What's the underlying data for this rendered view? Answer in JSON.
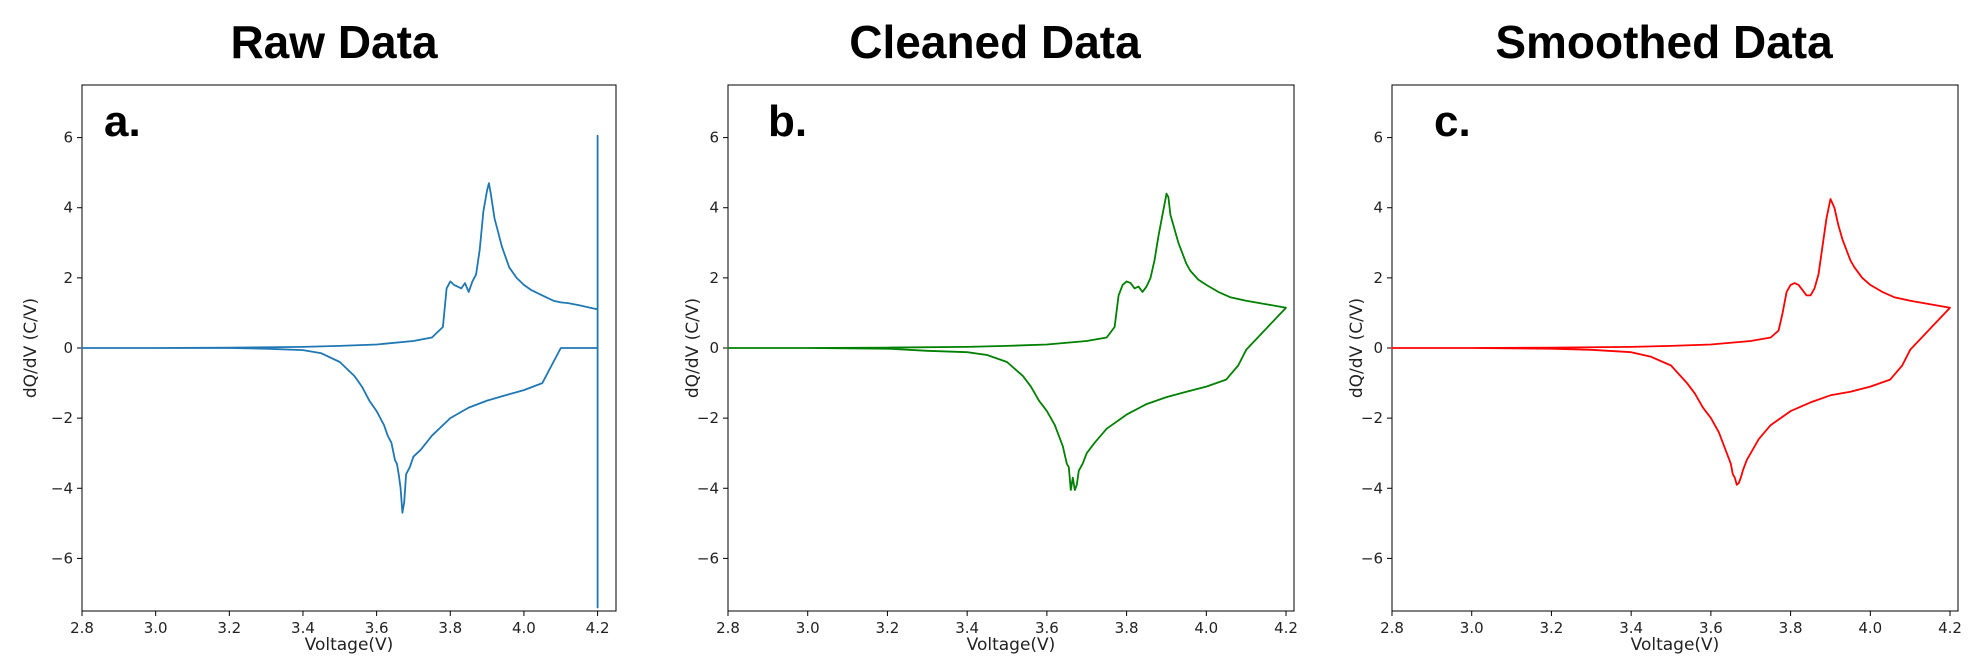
{
  "chart_data": [
    {
      "type": "line",
      "title": "Raw Data",
      "panel_label": "a.",
      "xlabel": "Voltage(V)",
      "ylabel": "dQ/dV (C/V)",
      "xlim": [
        2.8,
        4.25
      ],
      "ylim": [
        -7.5,
        7.5
      ],
      "xticks": [
        2.8,
        3.0,
        3.2,
        3.4,
        3.6,
        3.8,
        4.0,
        4.2
      ],
      "xtick_labels": [
        "2.8",
        "3.0",
        "3.2",
        "3.4",
        "3.6",
        "3.8",
        "4.0",
        "4.2"
      ],
      "yticks": [
        -6,
        -4,
        -2,
        0,
        2,
        4,
        6
      ],
      "ytick_labels": [
        "−6",
        "−4",
        "−2",
        "0",
        "2",
        "4",
        "6"
      ],
      "grid": false,
      "color": "#1f77b4",
      "series": [
        {
          "x": [
            2.8,
            3.0,
            3.2,
            3.4,
            3.5,
            3.6,
            3.7,
            3.75,
            3.78,
            3.79,
            3.8,
            3.81,
            3.82,
            3.83,
            3.84,
            3.85,
            3.86,
            3.87,
            3.88,
            3.89,
            3.9,
            3.905,
            3.91,
            3.92,
            3.93,
            3.94,
            3.95,
            3.96,
            3.98,
            4.0,
            4.02,
            4.05,
            4.08,
            4.1,
            4.12,
            4.15,
            4.18,
            4.2,
            4.2,
            4.2,
            4.2,
            4.19,
            4.15,
            4.1,
            4.05,
            4.0,
            3.95,
            3.9,
            3.85,
            3.8,
            3.75,
            3.72,
            3.7,
            3.69,
            3.68,
            3.675,
            3.67,
            3.665,
            3.66,
            3.655,
            3.65,
            3.64,
            3.63,
            3.62,
            3.6,
            3.58,
            3.56,
            3.54,
            3.5,
            3.45,
            3.4,
            3.3,
            3.2,
            3.0,
            2.8
          ],
          "y": [
            0,
            0,
            0.01,
            0.03,
            0.06,
            0.1,
            0.2,
            0.3,
            0.6,
            1.7,
            1.9,
            1.8,
            1.75,
            1.7,
            1.85,
            1.6,
            1.9,
            2.1,
            2.8,
            3.9,
            4.5,
            4.7,
            4.4,
            3.7,
            3.3,
            2.9,
            2.6,
            2.3,
            2.0,
            1.8,
            1.65,
            1.5,
            1.35,
            1.3,
            1.28,
            1.22,
            1.15,
            1.1,
            6.05,
            -7.4,
            0.0,
            0.0,
            0.0,
            0.0,
            -1.0,
            -1.2,
            -1.35,
            -1.5,
            -1.7,
            -2.0,
            -2.5,
            -2.9,
            -3.1,
            -3.4,
            -3.6,
            -4.4,
            -4.7,
            -4.0,
            -3.6,
            -3.3,
            -3.2,
            -2.7,
            -2.5,
            -2.2,
            -1.8,
            -1.5,
            -1.1,
            -0.8,
            -0.4,
            -0.15,
            -0.06,
            -0.02,
            0,
            0,
            0
          ]
        }
      ]
    },
    {
      "type": "line",
      "title": "Cleaned Data",
      "panel_label": "b.",
      "xlabel": "Voltage(V)",
      "ylabel": "dQ/dV (C/V)",
      "xlim": [
        2.8,
        4.22
      ],
      "ylim": [
        -7.5,
        7.5
      ],
      "xticks": [
        2.8,
        3.0,
        3.2,
        3.4,
        3.6,
        3.8,
        4.0,
        4.2
      ],
      "xtick_labels": [
        "2.8",
        "3.0",
        "3.2",
        "3.4",
        "3.6",
        "3.8",
        "4.0",
        "4.2"
      ],
      "yticks": [
        -6,
        -4,
        -2,
        0,
        2,
        4,
        6
      ],
      "ytick_labels": [
        "−6",
        "−4",
        "−2",
        "0",
        "2",
        "4",
        "6"
      ],
      "grid": false,
      "color": "#008000",
      "series": [
        {
          "x": [
            2.8,
            3.0,
            3.2,
            3.4,
            3.5,
            3.6,
            3.7,
            3.75,
            3.77,
            3.78,
            3.79,
            3.8,
            3.81,
            3.82,
            3.83,
            3.84,
            3.85,
            3.86,
            3.87,
            3.88,
            3.89,
            3.9,
            3.905,
            3.91,
            3.92,
            3.93,
            3.94,
            3.95,
            3.96,
            3.98,
            4.0,
            4.03,
            4.06,
            4.1,
            4.15,
            4.2,
            4.1,
            4.08,
            4.05,
            4.0,
            3.95,
            3.9,
            3.85,
            3.8,
            3.75,
            3.72,
            3.7,
            3.69,
            3.68,
            3.675,
            3.67,
            3.665,
            3.66,
            3.655,
            3.65,
            3.64,
            3.63,
            3.62,
            3.6,
            3.58,
            3.56,
            3.54,
            3.5,
            3.45,
            3.4,
            3.3,
            3.2,
            3.0,
            2.8
          ],
          "y": [
            0,
            0,
            0.01,
            0.03,
            0.06,
            0.1,
            0.2,
            0.3,
            0.6,
            1.5,
            1.8,
            1.9,
            1.85,
            1.7,
            1.75,
            1.6,
            1.75,
            2.0,
            2.5,
            3.2,
            3.8,
            4.4,
            4.3,
            3.8,
            3.4,
            3.0,
            2.7,
            2.4,
            2.2,
            1.95,
            1.8,
            1.6,
            1.45,
            1.35,
            1.25,
            1.15,
            -0.05,
            -0.5,
            -0.9,
            -1.1,
            -1.25,
            -1.4,
            -1.6,
            -1.9,
            -2.3,
            -2.7,
            -3.0,
            -3.3,
            -3.5,
            -3.9,
            -4.05,
            -3.7,
            -4.05,
            -3.4,
            -3.3,
            -2.8,
            -2.5,
            -2.2,
            -1.8,
            -1.5,
            -1.1,
            -0.8,
            -0.4,
            -0.2,
            -0.12,
            -0.08,
            -0.02,
            0,
            0
          ]
        }
      ]
    },
    {
      "type": "line",
      "title": "Smoothed Data",
      "panel_label": "c.",
      "xlabel": "Voltage(V)",
      "ylabel": "dQ/dV (C/V)",
      "xlim": [
        2.8,
        4.22
      ],
      "ylim": [
        -7.5,
        7.5
      ],
      "xticks": [
        2.8,
        3.0,
        3.2,
        3.4,
        3.6,
        3.8,
        4.0,
        4.2
      ],
      "xtick_labels": [
        "2.8",
        "3.0",
        "3.2",
        "3.4",
        "3.6",
        "3.8",
        "4.0",
        "4.2"
      ],
      "yticks": [
        -6,
        -4,
        -2,
        0,
        2,
        4,
        6
      ],
      "ytick_labels": [
        "−6",
        "−4",
        "−2",
        "0",
        "2",
        "4",
        "6"
      ],
      "grid": false,
      "color": "#ff0000",
      "series": [
        {
          "x": [
            2.8,
            3.0,
            3.2,
            3.4,
            3.5,
            3.6,
            3.7,
            3.75,
            3.77,
            3.78,
            3.79,
            3.8,
            3.81,
            3.82,
            3.83,
            3.84,
            3.85,
            3.86,
            3.87,
            3.88,
            3.89,
            3.9,
            3.91,
            3.92,
            3.93,
            3.94,
            3.95,
            3.96,
            3.98,
            4.0,
            4.03,
            4.06,
            4.1,
            4.15,
            4.2,
            4.1,
            4.08,
            4.05,
            4.0,
            3.95,
            3.9,
            3.85,
            3.8,
            3.75,
            3.72,
            3.7,
            3.69,
            3.68,
            3.675,
            3.67,
            3.665,
            3.66,
            3.655,
            3.65,
            3.64,
            3.63,
            3.62,
            3.6,
            3.58,
            3.56,
            3.54,
            3.5,
            3.45,
            3.4,
            3.3,
            3.2,
            3.0,
            2.8
          ],
          "y": [
            0,
            0,
            0.01,
            0.03,
            0.06,
            0.1,
            0.2,
            0.3,
            0.5,
            1.0,
            1.6,
            1.8,
            1.85,
            1.8,
            1.65,
            1.5,
            1.5,
            1.7,
            2.1,
            2.9,
            3.7,
            4.25,
            4.0,
            3.5,
            3.1,
            2.8,
            2.5,
            2.3,
            2.0,
            1.8,
            1.6,
            1.45,
            1.35,
            1.25,
            1.15,
            -0.05,
            -0.5,
            -0.9,
            -1.1,
            -1.25,
            -1.35,
            -1.55,
            -1.8,
            -2.2,
            -2.6,
            -3.0,
            -3.2,
            -3.5,
            -3.7,
            -3.85,
            -3.9,
            -3.7,
            -3.6,
            -3.3,
            -3.0,
            -2.7,
            -2.4,
            -2.0,
            -1.7,
            -1.3,
            -1.0,
            -0.5,
            -0.25,
            -0.12,
            -0.05,
            -0.02,
            0,
            0
          ]
        }
      ]
    }
  ]
}
